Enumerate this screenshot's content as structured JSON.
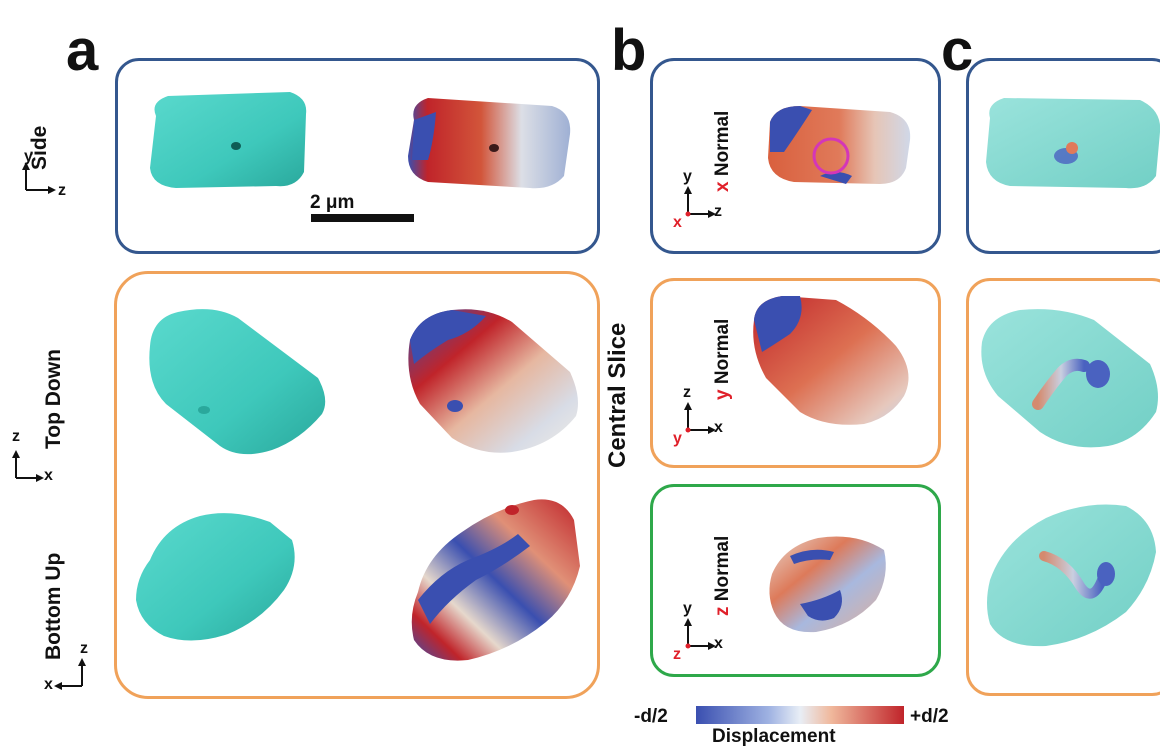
{
  "panels": {
    "a": "a",
    "b": "b",
    "c": "c"
  },
  "views": {
    "side": "Side",
    "top_down": "Top Down",
    "bottom_up": "Bottom Up"
  },
  "scale_bar": "2 μm",
  "central_slice": "Central Slice",
  "normals": {
    "x_axis": "x",
    "x_word": "Normal",
    "y_axis": "y",
    "y_word": "Normal",
    "z_axis": "z",
    "z_word": "Normal"
  },
  "axes": {
    "y": "y",
    "z": "z",
    "x": "x"
  },
  "colorbar": {
    "min_label": "-d/2",
    "max_label": "+d/2",
    "title": "Displacement",
    "colors": [
      "#3a4fb0",
      "#e8eef6",
      "#c0242a"
    ]
  },
  "frame_colors": {
    "blue": "#34578e",
    "orange": "#f0a25a",
    "green": "#2ea84a"
  }
}
